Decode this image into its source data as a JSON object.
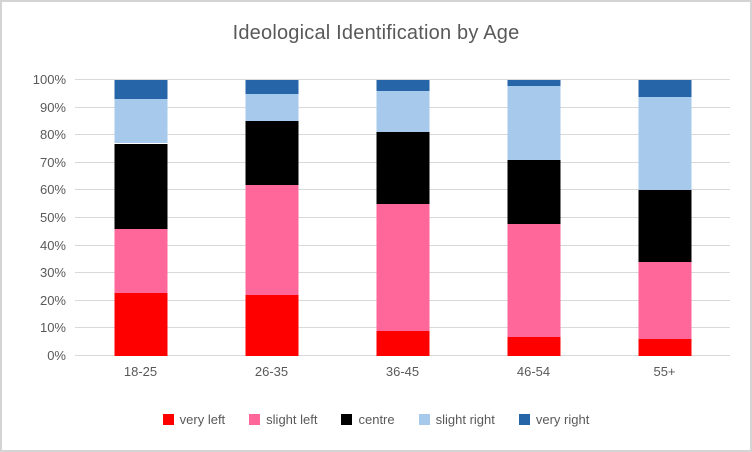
{
  "title": "Ideological Identification by Age",
  "chart_data": {
    "type": "bar",
    "stacked": true,
    "percent_stacked": true,
    "title": "Ideological Identification by Age",
    "xlabel": "",
    "ylabel": "",
    "ylim": [
      0,
      100
    ],
    "grid": true,
    "legend_position": "bottom",
    "categories": [
      "18-25",
      "26-35",
      "36-45",
      "46-54",
      "55+"
    ],
    "y_ticks": [
      "0%",
      "10%",
      "20%",
      "30%",
      "40%",
      "50%",
      "60%",
      "70%",
      "80%",
      "90%",
      "100%"
    ],
    "series": [
      {
        "name": "very left",
        "color": "#ff0000",
        "values": [
          23,
          22,
          9,
          7,
          6
        ]
      },
      {
        "name": "slight left",
        "color": "#ff6699",
        "values": [
          23,
          40,
          46,
          41,
          28
        ]
      },
      {
        "name": "centre",
        "color": "#000000",
        "values": [
          31,
          23,
          26,
          23,
          26
        ]
      },
      {
        "name": "slight right",
        "color": "#a7c9ec",
        "values": [
          16,
          10,
          15,
          27,
          34
        ]
      },
      {
        "name": "very right",
        "color": "#2565a8",
        "values": [
          7,
          5,
          4,
          2,
          6
        ]
      }
    ]
  },
  "colors": {
    "title_text": "#595959",
    "axis_text": "#595959",
    "gridline": "#d9d9d9",
    "frame_border": "#d4d4d4",
    "background": "#ffffff"
  }
}
